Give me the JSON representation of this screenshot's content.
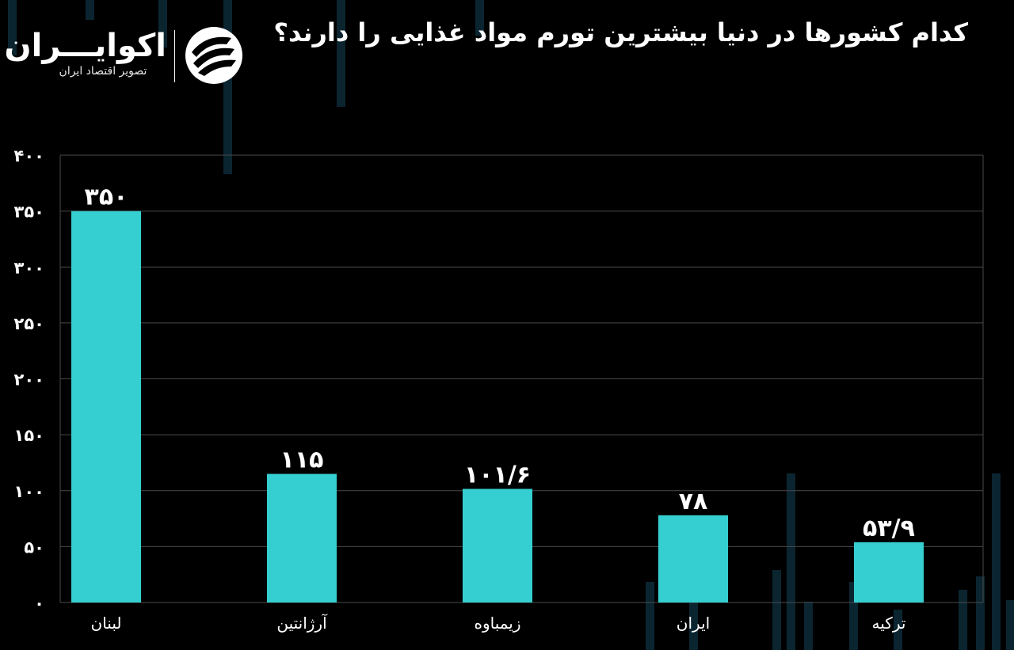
{
  "header": {
    "title": "کدام کشورها در دنیا بیشترین تورم مواد غذایی را دارند؟"
  },
  "logo": {
    "name": "اکوایـــران",
    "tagline": "تصویر اقتصاد ایران",
    "mark_icon": "ecoiran-swirl-logo"
  },
  "colors": {
    "background": "#000000",
    "bar": "#36cfd1",
    "grid": "#4a4a4a",
    "decor": "#0b2530"
  },
  "chart_data": {
    "type": "bar",
    "categories": [
      "لبنان",
      "آرژانتین",
      "زیمباوه",
      "ایران",
      "ترکیه"
    ],
    "values": [
      350,
      115,
      101.6,
      78,
      53.9
    ],
    "value_labels": [
      "۳۵۰",
      "۱۱۵",
      "۱۰۱/۶",
      "۷۸",
      "۵۳/۹"
    ],
    "ylim": [
      0,
      400
    ],
    "yticks": [
      0,
      50,
      100,
      150,
      200,
      250,
      300,
      350,
      400
    ],
    "ytick_labels": [
      "۰",
      "۵۰",
      "۱۰۰",
      "۱۵۰",
      "۲۰۰",
      "۲۵۰",
      "۳۰۰",
      "۳۵۰",
      "۴۰۰"
    ],
    "grid": true,
    "title": "کدام کشورها در دنیا بیشترین تورم مواد غذایی را دارند؟",
    "xlabel": "",
    "ylabel": ""
  }
}
